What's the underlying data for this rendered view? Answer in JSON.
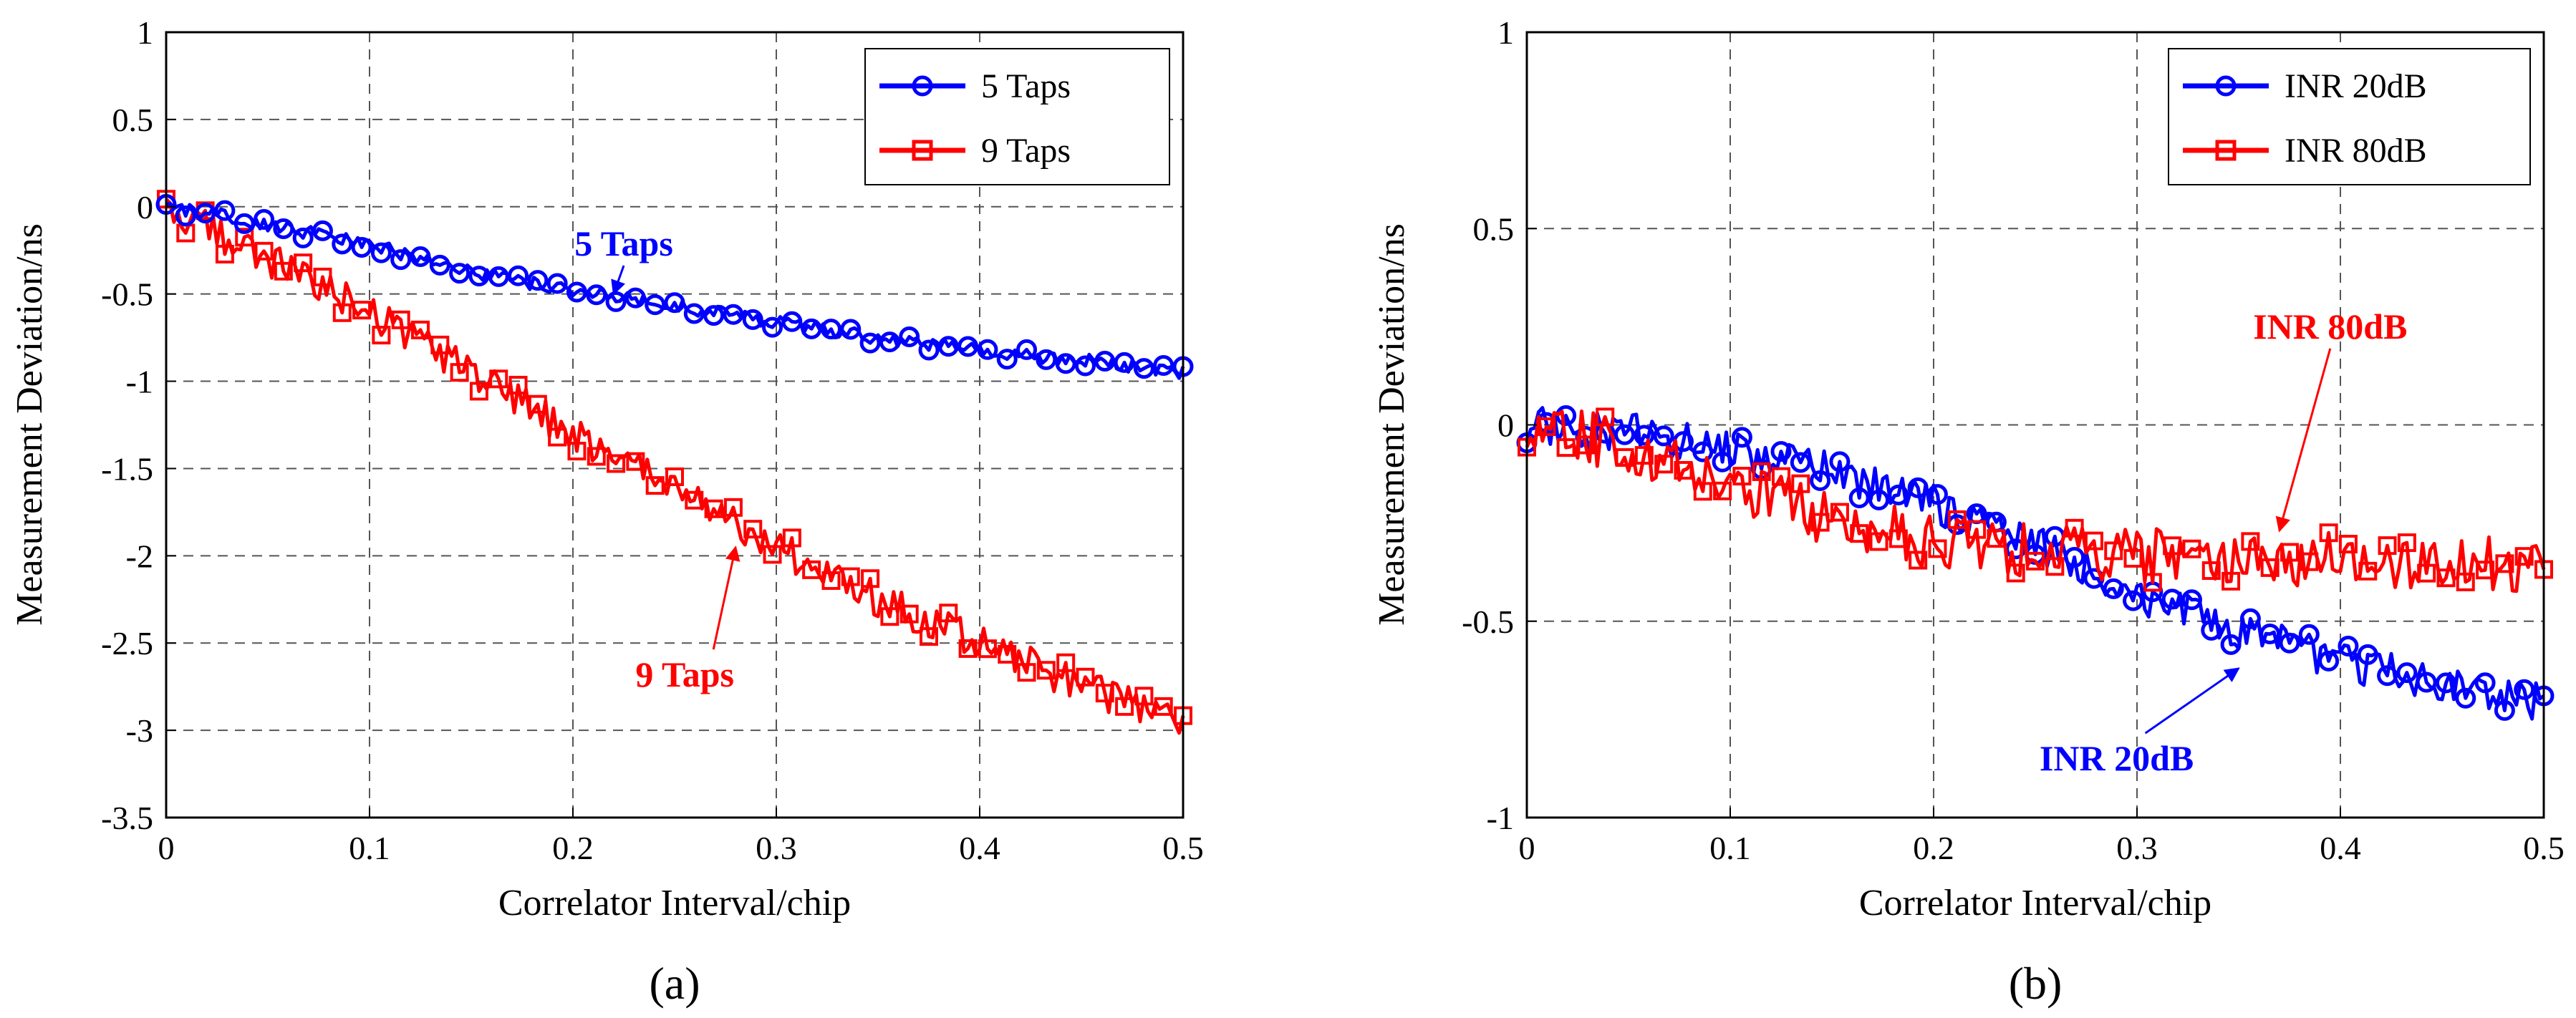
{
  "chart_data": [
    {
      "type": "line",
      "caption": "(a)",
      "xlabel": "Correlator Interval/chip",
      "ylabel": "Measurement Deviation/ns",
      "xlim": [
        0,
        0.5
      ],
      "ylim": [
        -3.5,
        1
      ],
      "xticks": [
        0,
        0.1,
        0.2,
        0.3,
        0.4,
        0.5
      ],
      "yticks": [
        1,
        0.5,
        0,
        -0.5,
        -1,
        -1.5,
        -2,
        -2.5,
        -3,
        -3.5
      ],
      "xtick_labels": [
        "0",
        "0.1",
        "0.2",
        "0.3",
        "0.4",
        "0.5"
      ],
      "ytick_labels": [
        "1",
        "0.5",
        "0",
        "-0.5",
        "-1",
        "-1.5",
        "-2",
        "-2.5",
        "-3",
        "-3.5"
      ],
      "grid": true,
      "legend_position": "top-right",
      "series": [
        {
          "name": "5 Taps",
          "color": "#0000ff",
          "marker": "circle",
          "x": [
            0,
            0.05,
            0.1,
            0.15,
            0.2,
            0.25,
            0.3,
            0.35,
            0.4,
            0.45,
            0.5
          ],
          "y": [
            0,
            -0.1,
            -0.22,
            -0.37,
            -0.48,
            -0.57,
            -0.66,
            -0.75,
            -0.82,
            -0.88,
            -0.95
          ],
          "noise": 0.04
        },
        {
          "name": "9 Taps",
          "color": "#ff0000",
          "marker": "square",
          "x": [
            0,
            0.05,
            0.1,
            0.15,
            0.2,
            0.25,
            0.3,
            0.35,
            0.4,
            0.45,
            0.5
          ],
          "y": [
            0,
            -0.3,
            -0.6,
            -0.95,
            -1.3,
            -1.62,
            -1.95,
            -2.25,
            -2.5,
            -2.75,
            -2.95
          ],
          "noise": 0.1
        }
      ],
      "annotations": [
        {
          "text": "5 Taps",
          "color": "#0000ff",
          "text_x": 0.225,
          "text_y": -0.28,
          "arrow_x": 0.22,
          "arrow_y": -0.5
        },
        {
          "text": "9 Taps",
          "color": "#ff0000",
          "text_x": 0.255,
          "text_y": -2.75,
          "arrow_x": 0.28,
          "arrow_y": -1.95
        }
      ]
    },
    {
      "type": "line",
      "caption": "(b)",
      "xlabel": "Correlator Interval/chip",
      "ylabel": "Measurement Deviation/ns",
      "xlim": [
        0,
        0.5
      ],
      "ylim": [
        -1,
        1
      ],
      "xticks": [
        0,
        0.1,
        0.2,
        0.3,
        0.4,
        0.5
      ],
      "yticks": [
        1,
        0.5,
        0,
        -0.5,
        -1
      ],
      "xtick_labels": [
        "0",
        "0.1",
        "0.2",
        "0.3",
        "0.4",
        "0.5"
      ],
      "ytick_labels": [
        "1",
        "0.5",
        "0",
        "-0.5",
        "-1"
      ],
      "grid": true,
      "legend_position": "top-right",
      "series": [
        {
          "name": "INR 20dB",
          "color": "#0000ff",
          "marker": "circle",
          "x": [
            0,
            0.05,
            0.1,
            0.15,
            0.2,
            0.25,
            0.3,
            0.35,
            0.4,
            0.45,
            0.5
          ],
          "y": [
            0,
            -0.02,
            -0.06,
            -0.12,
            -0.2,
            -0.3,
            -0.43,
            -0.53,
            -0.6,
            -0.66,
            -0.71
          ],
          "noise": 0.05
        },
        {
          "name": "INR 80dB",
          "color": "#ff0000",
          "marker": "square",
          "x": [
            0,
            0.05,
            0.1,
            0.15,
            0.2,
            0.25,
            0.3,
            0.35,
            0.4,
            0.45,
            0.5
          ],
          "y": [
            0,
            -0.06,
            -0.15,
            -0.24,
            -0.3,
            -0.32,
            -0.33,
            -0.34,
            -0.34,
            -0.35,
            -0.36
          ],
          "noise": 0.07
        }
      ],
      "annotations": [
        {
          "text": "INR 80dB",
          "color": "#ff0000",
          "text_x": 0.395,
          "text_y": 0.22,
          "arrow_x": 0.37,
          "arrow_y": -0.27
        },
        {
          "text": "INR 20dB",
          "color": "#0000ff",
          "text_x": 0.29,
          "text_y": -0.88,
          "arrow_x": 0.35,
          "arrow_y": -0.62
        }
      ]
    }
  ]
}
